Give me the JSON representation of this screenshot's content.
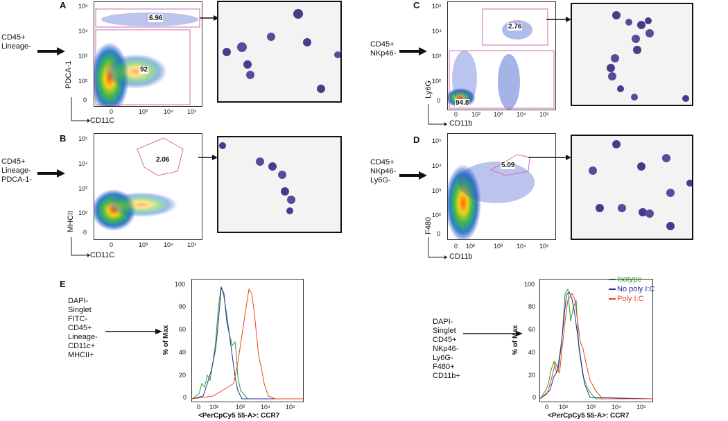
{
  "panels": {
    "A": {
      "letter": "A",
      "gate_label": "CD45+\nLineage-",
      "x_axis": "CD11C",
      "y_axis": "PDCA-1",
      "gates": [
        "6.96",
        "92"
      ]
    },
    "B": {
      "letter": "B",
      "gate_label": "CD45+\nLineage-\nPDCA-1-",
      "x_axis": "CD11C",
      "y_axis": "MHCII",
      "gates": [
        "2.06"
      ]
    },
    "C": {
      "letter": "C",
      "gate_label": "CD45+\nNKp46-",
      "x_axis": "CD11b",
      "y_axis": "Ly6G",
      "gates": [
        "2.76",
        "94.8"
      ]
    },
    "D": {
      "letter": "D",
      "gate_label": "CD45+\nNKp46-\nLy6G-",
      "x_axis": "CD11b",
      "y_axis": "F480",
      "gates": [
        "5.09"
      ]
    },
    "E": {
      "letter": "E",
      "left_label": "DAPI-\nSinglet\nFITC-\nCD45+\nLineage-\nCD11c+\nMHCII+",
      "right_label": "DAPI-\nSinglet\nCD45+\nNKp46-\nLy6G-\nF480+\nCD11b+",
      "y_axis": "% of Max",
      "x_axis": "<PerCpCy5 55-A>: CCR7"
    }
  },
  "ticks": {
    "log_y": [
      "10⁵",
      "10⁴",
      "10³",
      "10²",
      "0"
    ],
    "log_x": [
      "0",
      "10³",
      "10⁴",
      "10⁵"
    ],
    "log_x_c": [
      "0",
      "10²",
      "10³",
      "10⁴",
      "10⁵"
    ],
    "hist_y": [
      "100",
      "80",
      "60",
      "40",
      "20",
      "0"
    ],
    "hist_x": [
      "0",
      "10²",
      "10³",
      "10⁴",
      "10⁵"
    ]
  },
  "legend": [
    {
      "name": "Isotype",
      "color": "#2ca02c"
    },
    {
      "name": "No poly I:C",
      "color": "#1f2a9a"
    },
    {
      "name": "Poly I:C",
      "color": "#e8421e"
    }
  ]
}
